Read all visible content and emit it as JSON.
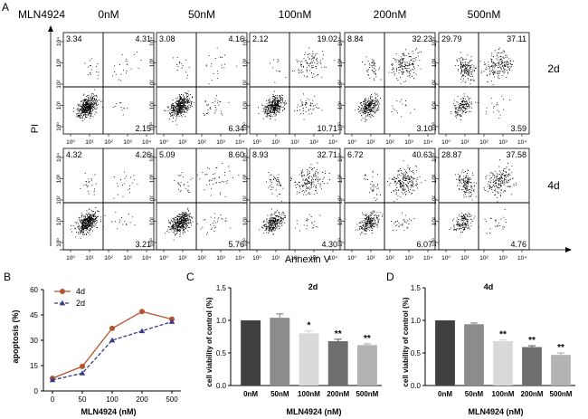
{
  "colors": {
    "dot": "#000000",
    "line_4d": "#b5532f",
    "line_2d": "#3a3a85",
    "bar_0nM": "#404040",
    "bar_50nM": "#8c8c8c",
    "bar_100nM": "#d9d9d9",
    "bar_200nM": "#6e6e6e",
    "bar_500nM": "#b3b3b3"
  },
  "chart_data": [
    {
      "panel": "A",
      "type": "scatter",
      "title": "MLN4924",
      "xlabel": "Annexin V",
      "ylabel": "PI",
      "axis_tick_labels": [
        "10⁰",
        "10¹",
        "10²",
        "10³",
        "10⁴"
      ],
      "columns": [
        "0nM",
        "50nM",
        "100nM",
        "200nM",
        "500nM"
      ],
      "rows": [
        {
          "label": "2d",
          "quadrants": [
            {
              "ul": "3.34",
              "ur": "4.31",
              "lr": "2.15"
            },
            {
              "ul": "3.08",
              "ur": "4.16",
              "lr": "6.34"
            },
            {
              "ul": "2.12",
              "ur": "19.02",
              "lr": "10.71"
            },
            {
              "ul": "8.84",
              "ur": "32.23",
              "lr": "3.10"
            },
            {
              "ul": "29.79",
              "ur": "37.11",
              "lr": "3.59"
            }
          ]
        },
        {
          "label": "4d",
          "quadrants": [
            {
              "ul": "4.32",
              "ur": "4.26",
              "lr": "3.21"
            },
            {
              "ul": "5.09",
              "ur": "8.60",
              "lr": "5.76"
            },
            {
              "ul": "8.93",
              "ur": "32.71",
              "lr": "4.30"
            },
            {
              "ul": "6.72",
              "ur": "40.63",
              "lr": "6.07"
            },
            {
              "ul": "28.87",
              "ur": "37.58",
              "lr": "4.76"
            }
          ]
        }
      ]
    },
    {
      "panel": "B",
      "type": "line",
      "xlabel": "MLN4924 (nM)",
      "ylabel": "apoptosis (%)",
      "categories": [
        "0",
        "50",
        "100",
        "200",
        "500"
      ],
      "ylim": [
        0,
        60
      ],
      "yticks": [
        "0",
        "15",
        "30",
        "45",
        "60"
      ],
      "series": [
        {
          "name": "4d",
          "values": [
            7.5,
            14.5,
            37,
            47,
            42.5
          ]
        },
        {
          "name": "2d",
          "values": [
            6.5,
            10.5,
            30,
            35.5,
            41
          ]
        }
      ]
    },
    {
      "panel": "C",
      "type": "bar",
      "title": "2d",
      "xlabel": "MLN4924 (nM)",
      "ylabel": "cell viability of control (%)",
      "categories": [
        "0nM",
        "50nM",
        "100nM",
        "200nM",
        "500nM"
      ],
      "values": [
        1.0,
        1.04,
        0.8,
        0.68,
        0.62
      ],
      "errors": [
        0,
        0.06,
        0.04,
        0.03,
        0.02
      ],
      "significance": [
        "",
        "",
        "*",
        "**",
        "**"
      ],
      "ylim": [
        0,
        1.5
      ],
      "yticks": [
        "0.0",
        "0.5",
        "1.0",
        "1.5"
      ]
    },
    {
      "panel": "D",
      "type": "bar",
      "title": "4d",
      "xlabel": "MLN4924 (nM)",
      "ylabel": "cell viability of control (%)",
      "categories": [
        "0nM",
        "50nM",
        "100nM",
        "200nM",
        "500nM"
      ],
      "values": [
        1.0,
        0.94,
        0.68,
        0.59,
        0.47
      ],
      "errors": [
        0,
        0.02,
        0.02,
        0.02,
        0.03
      ],
      "significance": [
        "",
        "",
        "**",
        "**",
        "**"
      ],
      "ylim": [
        0,
        1.5
      ],
      "yticks": [
        "0.0",
        "0.5",
        "1.0",
        "1.5"
      ]
    }
  ]
}
